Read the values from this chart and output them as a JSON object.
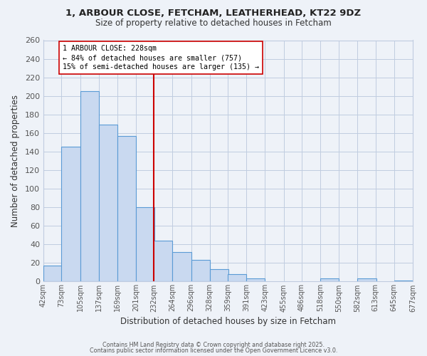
{
  "title_line1": "1, ARBOUR CLOSE, FETCHAM, LEATHERHEAD, KT22 9DZ",
  "title_line2": "Size of property relative to detached houses in Fetcham",
  "xlabel": "Distribution of detached houses by size in Fetcham",
  "ylabel": "Number of detached properties",
  "bar_left_edges": [
    42,
    73,
    105,
    137,
    169,
    201,
    232,
    264,
    296,
    328,
    359,
    391,
    423,
    455,
    486,
    518,
    550,
    582,
    613,
    645
  ],
  "bar_heights": [
    17,
    145,
    205,
    169,
    157,
    80,
    44,
    32,
    23,
    13,
    8,
    3,
    0,
    0,
    0,
    3,
    0,
    3,
    0,
    1
  ],
  "bin_width": 32,
  "tick_labels": [
    "42sqm",
    "73sqm",
    "105sqm",
    "137sqm",
    "169sqm",
    "201sqm",
    "232sqm",
    "264sqm",
    "296sqm",
    "328sqm",
    "359sqm",
    "391sqm",
    "423sqm",
    "455sqm",
    "486sqm",
    "518sqm",
    "550sqm",
    "582sqm",
    "613sqm",
    "645sqm",
    "677sqm"
  ],
  "vline_x": 232,
  "vline_color": "#cc0000",
  "bar_facecolor": "#c9d9f0",
  "bar_edgecolor": "#5b9bd5",
  "grid_color": "#c0cce0",
  "background_color": "#eef2f8",
  "annotation_text": "1 ARBOUR CLOSE: 228sqm\n← 84% of detached houses are smaller (757)\n15% of semi-detached houses are larger (135) →",
  "annotation_box_edgecolor": "#cc0000",
  "ylim": [
    0,
    260
  ],
  "yticks": [
    0,
    20,
    40,
    60,
    80,
    100,
    120,
    140,
    160,
    180,
    200,
    220,
    240,
    260
  ],
  "footer1": "Contains HM Land Registry data © Crown copyright and database right 2025.",
  "footer2": "Contains public sector information licensed under the Open Government Licence v3.0."
}
